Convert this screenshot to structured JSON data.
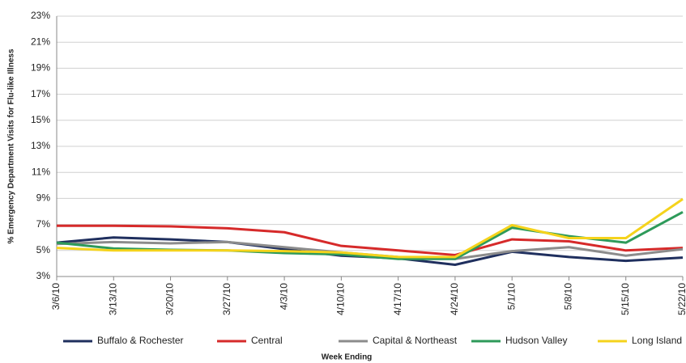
{
  "chart_data": {
    "type": "line",
    "y_label": "% Emergency Department Visits for Flu-like Illness",
    "x_label": "Week Ending",
    "categories": [
      "3/6/10",
      "3/13/10",
      "3/20/10",
      "3/27/10",
      "4/3/10",
      "4/10/10",
      "4/17/10",
      "4/24/10",
      "5/1/10",
      "5/8/10",
      "5/15/10",
      "5/22/10"
    ],
    "series": [
      {
        "name": "Buffalo & Rochester",
        "color": "#1f2f5e",
        "values": [
          5.6,
          6.0,
          5.85,
          5.65,
          5.1,
          4.6,
          4.4,
          3.9,
          4.9,
          4.5,
          4.2,
          4.45
        ]
      },
      {
        "name": "Central",
        "color": "#d62a2a",
        "values": [
          6.9,
          6.9,
          6.85,
          6.7,
          6.4,
          5.35,
          5.0,
          4.65,
          5.85,
          5.7,
          5.0,
          5.2
        ]
      },
      {
        "name": "Capital & Northeast",
        "color": "#8c8c8c",
        "values": [
          5.5,
          5.65,
          5.55,
          5.65,
          5.25,
          4.85,
          4.5,
          4.35,
          4.95,
          5.25,
          4.6,
          5.1
        ]
      },
      {
        "name": "Hudson Valley",
        "color": "#2e9a5a",
        "values": [
          5.6,
          5.15,
          5.05,
          5.0,
          4.8,
          4.7,
          4.35,
          4.35,
          6.75,
          6.1,
          5.6,
          7.95
        ]
      },
      {
        "name": "Long Island",
        "color": "#f5d31c",
        "values": [
          5.2,
          5.0,
          5.0,
          5.0,
          4.95,
          4.85,
          4.5,
          4.5,
          6.95,
          5.95,
          5.95,
          8.95
        ]
      }
    ],
    "ylim": [
      3,
      23
    ],
    "yticks": [
      {
        "value": 3,
        "label": "3%"
      },
      {
        "value": 5,
        "label": "5%"
      },
      {
        "value": 7,
        "label": "7%"
      },
      {
        "value": 9,
        "label": "9%"
      },
      {
        "value": 11,
        "label": "11%"
      },
      {
        "value": 13,
        "label": "13%"
      },
      {
        "value": 15,
        "label": "15%"
      },
      {
        "value": 17,
        "label": "17%"
      },
      {
        "value": 19,
        "label": "19%"
      },
      {
        "value": 21,
        "label": "21%"
      },
      {
        "value": 23,
        "label": "23%"
      }
    ],
    "grid": true,
    "legend": "bottom"
  }
}
